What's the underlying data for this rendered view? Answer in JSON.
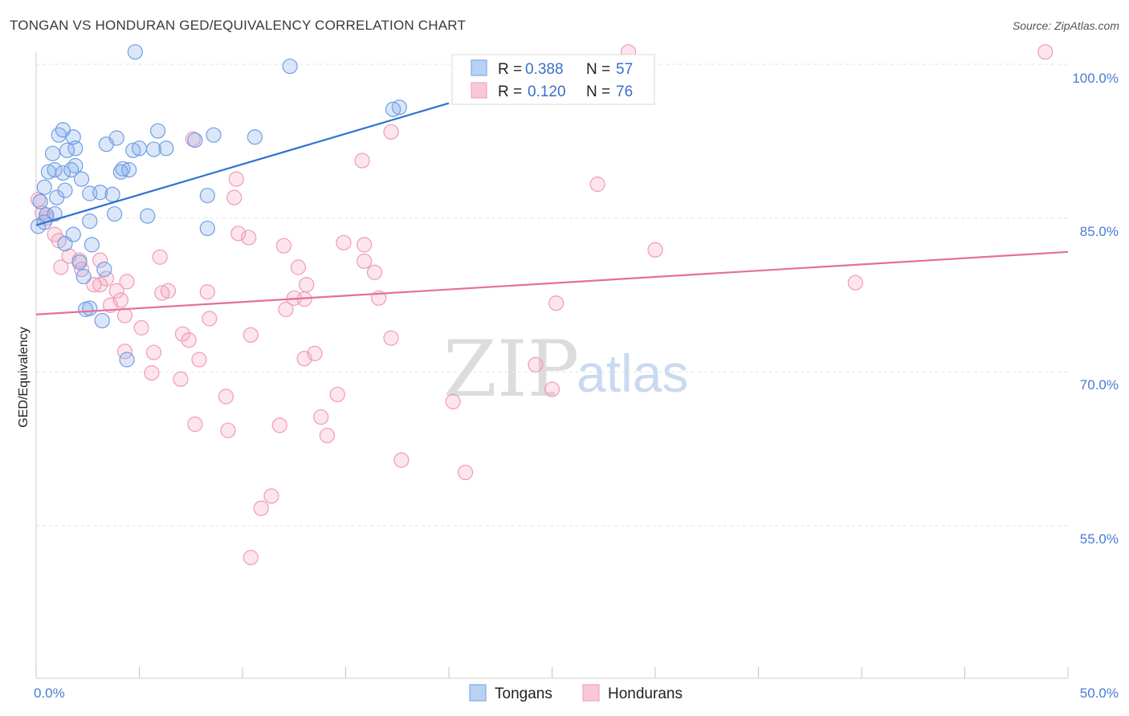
{
  "header": {
    "title": "TONGAN VS HONDURAN GED/EQUIVALENCY CORRELATION CHART",
    "source": "Source: ZipAtlas.com"
  },
  "watermark": {
    "zip": "ZIP",
    "atlas": "atlas"
  },
  "legend": {
    "rows": [
      {
        "r_label": "R =",
        "r_value": "0.388",
        "n_label": "N =",
        "n_value": "57"
      },
      {
        "r_label": "R =",
        "r_value": "0.120",
        "n_label": "N =",
        "n_value": "76"
      }
    ]
  },
  "bottom_legend": {
    "tongans": "Tongans",
    "hondurans": "Hondurans"
  },
  "axis": {
    "ylabel": "GED/Equivalency",
    "x_min_label": "0.0%",
    "x_max_label": "50.0%",
    "y_ticks": [
      "100.0%",
      "85.0%",
      "70.0%",
      "55.0%"
    ]
  },
  "chart_data": {
    "type": "scatter",
    "title": "TONGAN VS HONDURAN GED/EQUIVALENCY CORRELATION CHART",
    "xlabel": "",
    "ylabel": "GED/Equivalency",
    "xlim": [
      0,
      50
    ],
    "ylim": [
      40,
      102
    ],
    "y_tick_values": [
      100,
      85,
      70,
      55
    ],
    "x_tick_labels": [
      "0.0%",
      "50.0%"
    ],
    "grid": true,
    "legend_position": "top-center",
    "colors": {
      "tongans": "#7ea8e8",
      "tongans_line": "#2f72d0",
      "hondurans": "#f4a3bd",
      "hondurans_line": "#e46f98"
    },
    "series": [
      {
        "name": "Tongans",
        "R": 0.388,
        "N": 57,
        "trend": {
          "x": [
            0,
            20
          ],
          "y": [
            84.3,
            96.2
          ]
        },
        "points": [
          [
            4.8,
            101.2
          ],
          [
            12.3,
            99.8
          ],
          [
            17.6,
            95.8
          ],
          [
            17.3,
            95.6
          ],
          [
            1.1,
            93.1
          ],
          [
            1.8,
            92.9
          ],
          [
            1.3,
            93.6
          ],
          [
            3.9,
            92.8
          ],
          [
            8.6,
            93.1
          ],
          [
            10.6,
            92.9
          ],
          [
            5.9,
            93.5
          ],
          [
            3.4,
            92.2
          ],
          [
            1.9,
            91.8
          ],
          [
            0.8,
            91.3
          ],
          [
            1.5,
            91.6
          ],
          [
            4.7,
            91.6
          ],
          [
            5.0,
            91.8
          ],
          [
            5.7,
            91.7
          ],
          [
            6.3,
            91.8
          ],
          [
            1.9,
            90.1
          ],
          [
            0.6,
            89.5
          ],
          [
            0.9,
            89.7
          ],
          [
            1.3,
            89.4
          ],
          [
            1.7,
            89.7
          ],
          [
            4.2,
            89.8
          ],
          [
            4.5,
            89.7
          ],
          [
            4.1,
            89.5
          ],
          [
            7.7,
            92.6
          ],
          [
            2.2,
            88.8
          ],
          [
            0.4,
            88.0
          ],
          [
            1.4,
            87.7
          ],
          [
            2.6,
            87.4
          ],
          [
            3.1,
            87.5
          ],
          [
            3.7,
            87.3
          ],
          [
            8.3,
            87.2
          ],
          [
            0.2,
            86.6
          ],
          [
            1.0,
            87.0
          ],
          [
            0.9,
            85.4
          ],
          [
            3.8,
            85.4
          ],
          [
            5.4,
            85.2
          ],
          [
            2.6,
            84.7
          ],
          [
            8.3,
            84.0
          ],
          [
            1.8,
            83.4
          ],
          [
            1.4,
            82.5
          ],
          [
            2.7,
            82.4
          ],
          [
            0.5,
            85.3
          ],
          [
            2.1,
            80.7
          ],
          [
            3.3,
            80.0
          ],
          [
            2.3,
            79.3
          ],
          [
            2.4,
            76.1
          ],
          [
            2.6,
            76.2
          ],
          [
            3.2,
            75.0
          ],
          [
            4.4,
            71.2
          ],
          [
            0.1,
            84.2
          ],
          [
            0.4,
            84.6
          ]
        ]
      },
      {
        "name": "Hondurans",
        "R": 0.12,
        "N": 76,
        "trend": {
          "x": [
            0,
            50
          ],
          "y": [
            75.6,
            81.7
          ]
        },
        "points": [
          [
            48.9,
            101.2
          ],
          [
            28.7,
            101.2
          ],
          [
            17.2,
            93.4
          ],
          [
            7.6,
            92.7
          ],
          [
            15.8,
            90.6
          ],
          [
            9.7,
            88.8
          ],
          [
            27.2,
            88.3
          ],
          [
            9.6,
            87.0
          ],
          [
            0.1,
            86.8
          ],
          [
            0.3,
            85.5
          ],
          [
            0.5,
            85.0
          ],
          [
            0.9,
            83.4
          ],
          [
            1.1,
            82.8
          ],
          [
            9.8,
            83.5
          ],
          [
            10.3,
            83.1
          ],
          [
            12.0,
            82.3
          ],
          [
            14.9,
            82.6
          ],
          [
            15.9,
            82.4
          ],
          [
            30.0,
            81.9
          ],
          [
            1.6,
            81.3
          ],
          [
            2.1,
            80.9
          ],
          [
            3.1,
            80.9
          ],
          [
            6.0,
            81.2
          ],
          [
            15.9,
            80.8
          ],
          [
            16.4,
            79.7
          ],
          [
            1.2,
            80.2
          ],
          [
            2.2,
            80.0
          ],
          [
            3.4,
            79.1
          ],
          [
            12.7,
            80.2
          ],
          [
            13.1,
            78.5
          ],
          [
            39.7,
            78.7
          ],
          [
            2.8,
            78.5
          ],
          [
            3.1,
            78.5
          ],
          [
            3.9,
            77.9
          ],
          [
            4.4,
            78.8
          ],
          [
            6.1,
            77.7
          ],
          [
            6.4,
            77.9
          ],
          [
            8.3,
            77.8
          ],
          [
            12.5,
            77.2
          ],
          [
            13.0,
            77.1
          ],
          [
            16.6,
            77.2
          ],
          [
            25.2,
            76.7
          ],
          [
            3.6,
            76.5
          ],
          [
            4.1,
            77.0
          ],
          [
            12.1,
            76.1
          ],
          [
            4.3,
            75.5
          ],
          [
            8.4,
            75.2
          ],
          [
            5.1,
            74.3
          ],
          [
            7.1,
            73.7
          ],
          [
            7.4,
            73.1
          ],
          [
            10.4,
            73.6
          ],
          [
            17.2,
            73.3
          ],
          [
            4.3,
            72.0
          ],
          [
            5.7,
            71.9
          ],
          [
            7.9,
            71.2
          ],
          [
            13.0,
            71.3
          ],
          [
            13.5,
            71.8
          ],
          [
            24.2,
            70.7
          ],
          [
            5.6,
            69.9
          ],
          [
            7.0,
            69.3
          ],
          [
            25.0,
            68.3
          ],
          [
            9.2,
            67.6
          ],
          [
            14.6,
            67.8
          ],
          [
            20.2,
            67.1
          ],
          [
            7.7,
            64.9
          ],
          [
            11.8,
            64.8
          ],
          [
            9.3,
            64.3
          ],
          [
            13.8,
            65.6
          ],
          [
            14.1,
            63.8
          ],
          [
            17.7,
            61.4
          ],
          [
            20.8,
            60.2
          ],
          [
            11.4,
            57.9
          ],
          [
            10.9,
            56.7
          ],
          [
            10.4,
            51.9
          ]
        ]
      }
    ]
  }
}
